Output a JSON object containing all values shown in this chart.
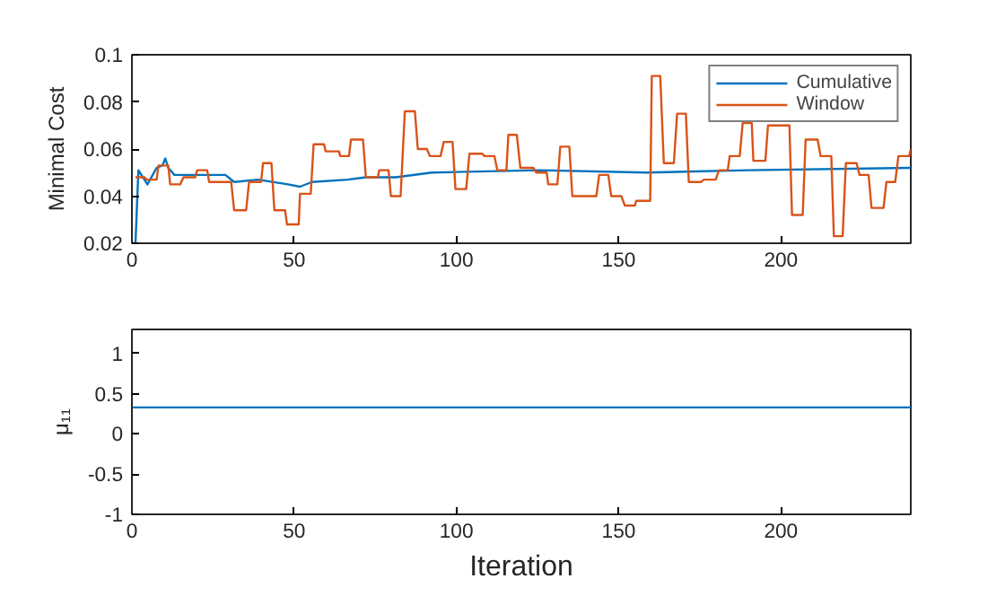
{
  "chart_data": [
    {
      "type": "line",
      "ylabel": "Minimal Cost",
      "xlim": [
        0,
        240
      ],
      "xticks": [
        0,
        50,
        100,
        150,
        200
      ],
      "ylim": [
        0.02,
        0.1
      ],
      "yticks": [
        0.02,
        0.04,
        0.06,
        0.08,
        0.1
      ],
      "grid": false,
      "legend": "top right",
      "line_style": "solid",
      "marker": "none",
      "series": [
        {
          "name": "Cumulative",
          "color": "#0072bd",
          "x": [
            0,
            1.1,
            2.0,
            4.8,
            7.6,
            9.4,
            10.3,
            11.2,
            13.1,
            18.6,
            26.9,
            28.8,
            31.5,
            38.9,
            48.1,
            51.8,
            55.5,
            66.5,
            72.1,
            81.3,
            92.4,
            125.6,
            158.7,
            190.1,
            240
          ],
          "values": [
            0.02,
            0.02,
            0.051,
            0.045,
            0.052,
            0.053,
            0.056,
            0.052,
            0.049,
            0.049,
            0.049,
            0.049,
            0.046,
            0.047,
            0.045,
            0.044,
            0.046,
            0.047,
            0.048,
            0.048,
            0.05,
            0.051,
            0.05,
            0.051,
            0.052
          ]
        },
        {
          "name": "Window",
          "color": "#d95319",
          "x": [
            1.1,
            3.9,
            4.5,
            7.6,
            8.2,
            11.2,
            11.8,
            14.9,
            15.9,
            19.5,
            20.1,
            23.2,
            23.8,
            30.6,
            31.5,
            35.2,
            36.1,
            39.8,
            40.4,
            43,
            43.9,
            47.2,
            47.8,
            51.4,
            51.8,
            55.1,
            56,
            59.2,
            59.7,
            63.8,
            64.2,
            66.9,
            67.5,
            71.2,
            72.1,
            75.8,
            76.2,
            79.1,
            79.8,
            82.8,
            84.1,
            87.2,
            88.1,
            90.9,
            91.8,
            95.1,
            96.1,
            98.8,
            99.7,
            103,
            104,
            108,
            108.6,
            111.7,
            112.6,
            115.4,
            116,
            118.6,
            119.7,
            123.7,
            124.6,
            127.8,
            128.3,
            131.1,
            132,
            134.8,
            135.7,
            143.1,
            144,
            146.8,
            147.7,
            150.8,
            151.9,
            155,
            155.4,
            159.7,
            160.2,
            162.8,
            163.9,
            167,
            168,
            170.7,
            171.6,
            175.3,
            176.3,
            179.9,
            180.9,
            183.6,
            184.2,
            187.3,
            188.2,
            191,
            191.5,
            195.2,
            196,
            202.6,
            203.4,
            206.7,
            207.6,
            211.3,
            212.2,
            215.5,
            216.3,
            219,
            220,
            223.3,
            224.2,
            227,
            227.9,
            231.6,
            232.5,
            235.2,
            236.2,
            239.5,
            240
          ],
          "values": [
            0.048,
            0.048,
            0.047,
            0.047,
            0.053,
            0.053,
            0.045,
            0.045,
            0.048,
            0.048,
            0.051,
            0.051,
            0.046,
            0.046,
            0.034,
            0.034,
            0.046,
            0.046,
            0.054,
            0.054,
            0.034,
            0.034,
            0.028,
            0.028,
            0.041,
            0.041,
            0.062,
            0.062,
            0.059,
            0.059,
            0.057,
            0.057,
            0.064,
            0.064,
            0.048,
            0.048,
            0.051,
            0.051,
            0.04,
            0.04,
            0.076,
            0.076,
            0.06,
            0.06,
            0.057,
            0.057,
            0.063,
            0.063,
            0.043,
            0.043,
            0.058,
            0.058,
            0.057,
            0.057,
            0.051,
            0.051,
            0.066,
            0.066,
            0.052,
            0.052,
            0.05,
            0.05,
            0.045,
            0.045,
            0.061,
            0.061,
            0.04,
            0.04,
            0.049,
            0.049,
            0.04,
            0.04,
            0.036,
            0.036,
            0.038,
            0.038,
            0.091,
            0.091,
            0.054,
            0.054,
            0.075,
            0.075,
            0.046,
            0.046,
            0.047,
            0.047,
            0.051,
            0.051,
            0.057,
            0.057,
            0.071,
            0.071,
            0.055,
            0.055,
            0.07,
            0.07,
            0.032,
            0.032,
            0.064,
            0.064,
            0.057,
            0.057,
            0.023,
            0.023,
            0.054,
            0.054,
            0.049,
            0.049,
            0.035,
            0.035,
            0.046,
            0.046,
            0.057,
            0.057,
            0.06
          ]
        }
      ]
    },
    {
      "type": "line",
      "xlabel": "Iteration",
      "ylabel": "μ₁₁",
      "xlim": [
        0,
        240
      ],
      "xticks": [
        0,
        50,
        100,
        150,
        200
      ],
      "ylim": [
        -1,
        1.3
      ],
      "yticks": [
        -1,
        -0.5,
        0,
        0.5,
        1
      ],
      "grid": false,
      "legend": false,
      "line_style": "solid",
      "marker": "none",
      "series": [
        {
          "color": "#0072bd",
          "x": [
            0,
            240
          ],
          "values": [
            0.33,
            0.33
          ]
        }
      ]
    }
  ]
}
